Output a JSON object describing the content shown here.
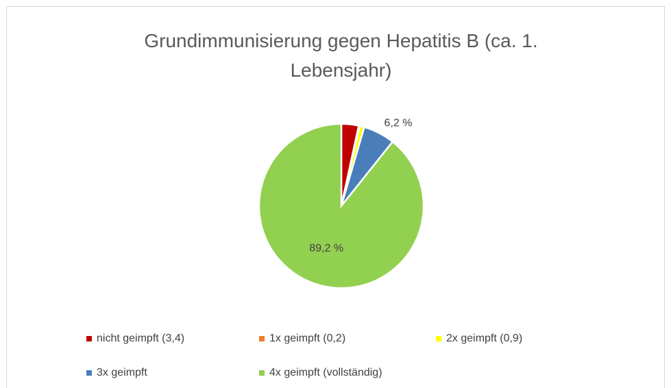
{
  "chart_data": {
    "type": "pie",
    "title": "Grundimmunisierung gegen Hepatitis B (ca. 1. Lebensjahr)",
    "categories": [
      "nicht geimpft (3,4)",
      "1x geimpft (0,2)",
      "2x geimpft (0,9)",
      "3x geimpft",
      "4x geimpft (vollständig)"
    ],
    "values": [
      3.4,
      0.2,
      0.9,
      6.2,
      89.2
    ],
    "value_labels": [
      null,
      null,
      null,
      "6,2 %",
      "89,2 %"
    ],
    "colors": [
      "#c00000",
      "#ed7d31",
      "#ffff00",
      "#4a7ebb",
      "#92d050"
    ],
    "legend": "bottom"
  }
}
